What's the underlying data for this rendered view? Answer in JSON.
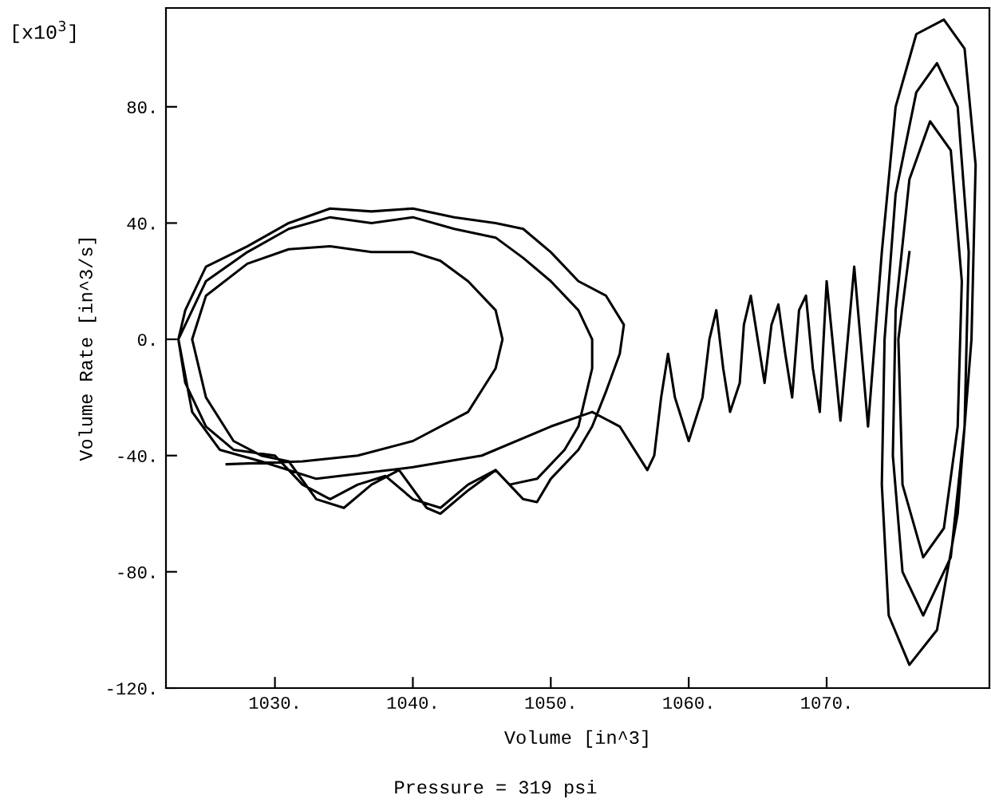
{
  "chart_data": {
    "type": "line",
    "xlabel": "Volume [in^3]",
    "ylabel": "Volume Rate [in^3/s]",
    "annotations": [
      "[x10$^{3}$]",
      "Pressure = 319 psi"
    ],
    "xlim": [
      1022.1,
      1081.8
    ],
    "ylim": [
      -120,
      114
    ],
    "xticks": [
      {
        "value": 1030,
        "label": "1030."
      },
      {
        "value": 1040,
        "label": "1040."
      },
      {
        "value": 1050,
        "label": "1050."
      },
      {
        "value": 1060,
        "label": "1060."
      },
      {
        "value": 1070,
        "label": "1070."
      }
    ],
    "yticks": [
      {
        "value": -120,
        "label": "-120."
      },
      {
        "value": -80,
        "label": "-80."
      },
      {
        "value": -40,
        "label": "-40."
      },
      {
        "value": 0,
        "label": "0."
      },
      {
        "value": 40,
        "label": "40."
      },
      {
        "value": 80,
        "label": "80."
      }
    ],
    "grid": false,
    "legend": false,
    "marker": "none",
    "line_style": "solid",
    "series": [
      {
        "color": "#000000",
        "x": [
          1026.5,
          1032,
          1036,
          1040,
          1044,
          1046,
          1046.5,
          1046,
          1044,
          1042,
          1040,
          1037,
          1034,
          1031,
          1028,
          1025,
          1024,
          1025,
          1027,
          1029,
          1031,
          1033,
          1035,
          1037,
          1039,
          1041,
          1042,
          1044,
          1046,
          1048,
          1049,
          1050,
          1052,
          1053,
          1054,
          1055,
          1055.3,
          1054,
          1052,
          1050,
          1048,
          1046,
          1043,
          1040,
          1037,
          1034,
          1031,
          1028,
          1025,
          1023.5,
          1023,
          1023.5,
          1025,
          1027,
          1030,
          1032,
          1034,
          1036,
          1038,
          1040,
          1042,
          1044,
          1046,
          1047,
          1049,
          1051,
          1052,
          1053,
          1053,
          1052,
          1050,
          1048,
          1046,
          1043,
          1040,
          1037,
          1034,
          1031,
          1028,
          1025,
          1023,
          1024,
          1026,
          1029,
          1033,
          1040,
          1045,
          1050,
          1053,
          1055,
          1057,
          1057.5,
          1058,
          1058.5,
          1059,
          1060,
          1061,
          1061.5,
          1062,
          1062.5,
          1063,
          1063.7,
          1064,
          1064.5,
          1065,
          1065.5,
          1066,
          1066.5,
          1067,
          1067.5,
          1068,
          1068.5,
          1069,
          1069.5,
          1070,
          1071,
          1072,
          1073,
          1074,
          1075,
          1076.5,
          1078.5,
          1080,
          1080.8,
          1080.5,
          1079.5,
          1078,
          1076,
          1074.5,
          1074,
          1074.2,
          1075,
          1076.5,
          1078,
          1079.5,
          1080.3,
          1080,
          1079,
          1077,
          1075.5,
          1074.8,
          1075,
          1076,
          1077.5,
          1079,
          1079.8,
          1079.5,
          1078.5,
          1077,
          1075.5,
          1075.2,
          1076
        ],
        "values": [
          -43,
          -42,
          -40,
          -35,
          -25,
          -10,
          0,
          10,
          20,
          27,
          30,
          30,
          32,
          31,
          26,
          15,
          0,
          -20,
          -35,
          -40,
          -42,
          -55,
          -58,
          -50,
          -45,
          -58,
          -60,
          -52,
          -45,
          -55,
          -56,
          -48,
          -38,
          -30,
          -18,
          -5,
          5,
          15,
          20,
          30,
          38,
          40,
          42,
          45,
          44,
          45,
          40,
          32,
          25,
          10,
          0,
          -15,
          -30,
          -38,
          -40,
          -50,
          -55,
          -50,
          -47,
          -55,
          -58,
          -50,
          -45,
          -50,
          -48,
          -38,
          -30,
          -10,
          0,
          10,
          20,
          28,
          35,
          38,
          42,
          40,
          42,
          38,
          30,
          20,
          0,
          -25,
          -38,
          -42,
          -48,
          -44,
          -40,
          -30,
          -25,
          -30,
          -45,
          -40,
          -20,
          -5,
          -20,
          -35,
          -20,
          0,
          10,
          -10,
          -25,
          -15,
          5,
          15,
          0,
          -15,
          5,
          12,
          -5,
          -20,
          10,
          15,
          -10,
          -25,
          20,
          -28,
          25,
          -30,
          30,
          80,
          105,
          110,
          100,
          60,
          0,
          -60,
          -100,
          -112,
          -95,
          -50,
          0,
          50,
          85,
          95,
          80,
          30,
          -30,
          -75,
          -95,
          -80,
          -40,
          10,
          55,
          75,
          65,
          20,
          -30,
          -65,
          -75,
          -50,
          0,
          30
        ]
      }
    ]
  }
}
